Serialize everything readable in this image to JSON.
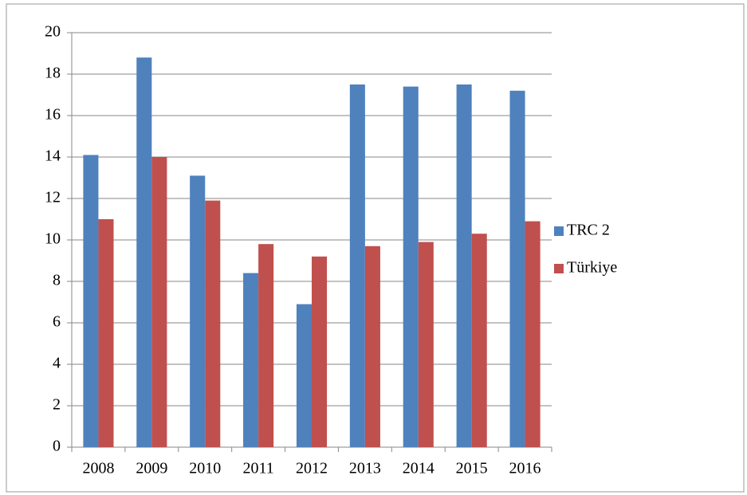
{
  "chart_data": {
    "type": "bar",
    "categories": [
      "2008",
      "2009",
      "2010",
      "2011",
      "2012",
      "2013",
      "2014",
      "2015",
      "2016"
    ],
    "series": [
      {
        "name": "TRC 2",
        "color": "#4f81bd",
        "values": [
          14.1,
          18.8,
          13.1,
          8.4,
          6.9,
          17.5,
          17.4,
          17.5,
          17.2
        ]
      },
      {
        "name": "Türkiye",
        "color": "#c0504d",
        "values": [
          11.0,
          14.0,
          11.9,
          9.8,
          9.2,
          9.7,
          9.9,
          10.3,
          10.9
        ]
      }
    ],
    "ylim": [
      0,
      20
    ],
    "yticks": [
      0,
      2,
      4,
      6,
      8,
      10,
      12,
      14,
      16,
      18,
      20
    ],
    "grid": true,
    "legend": "right"
  }
}
